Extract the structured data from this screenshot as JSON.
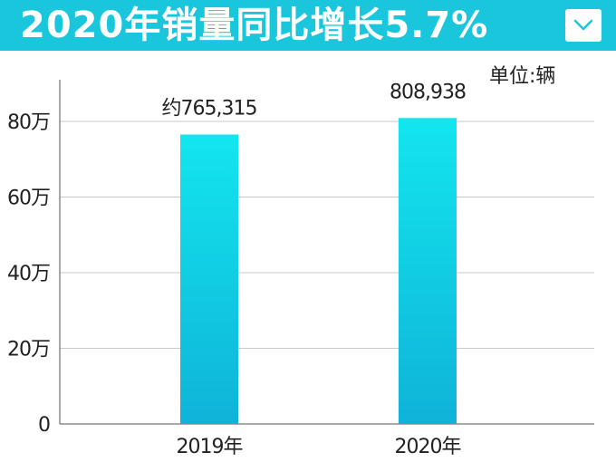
{
  "header": {
    "title": "2020年销量同比增长5.7%",
    "dropdown_icon": "chevron-down-icon"
  },
  "unit_label": "单位:辆",
  "colors": {
    "banner": "#19c6dc",
    "bar_top": "#13e6ee",
    "bar_bottom": "#0fb3d8",
    "grid": "#c8c8c8",
    "axis": "#555555",
    "text": "#222222"
  },
  "chart_data": {
    "type": "bar",
    "categories": [
      "2019年",
      "2020年"
    ],
    "values": [
      765315,
      808938
    ],
    "data_labels": [
      "约765,315",
      "808,938"
    ],
    "yticks": [
      0,
      200000,
      400000,
      600000,
      800000
    ],
    "ytick_labels": [
      "0",
      "20万",
      "40万",
      "60万",
      "80万"
    ],
    "ylim": [
      0,
      900000
    ],
    "grid": true,
    "unit": "单位:辆"
  }
}
